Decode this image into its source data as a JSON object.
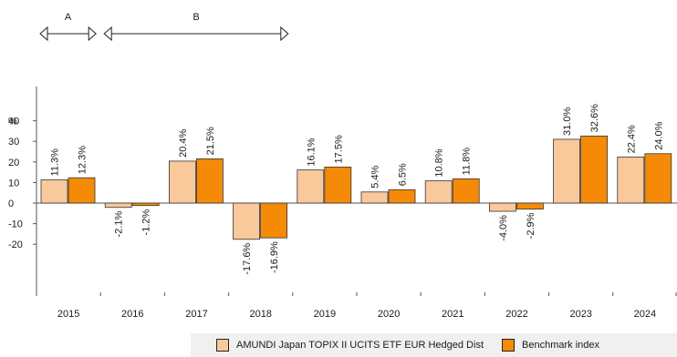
{
  "chart_data": {
    "type": "bar",
    "y_unit_label": "%",
    "categories": [
      "2015",
      "2016",
      "2017",
      "2018",
      "2019",
      "2020",
      "2021",
      "2022",
      "2023",
      "2024"
    ],
    "series": [
      {
        "name": "AMUNDI Japan TOPIX II UCITS ETF EUR Hedged Dist",
        "color": "#f9c99b",
        "values": [
          11.3,
          -2.1,
          20.4,
          -17.6,
          16.1,
          5.4,
          10.8,
          -4.0,
          31.0,
          22.4
        ],
        "labels": [
          "11.3%",
          "-2.1%",
          "20.4%",
          "-17.6%",
          "16.1%",
          "5.4%",
          "10.8%",
          "-4.0%",
          "31.0%",
          "22.4%"
        ]
      },
      {
        "name": "Benchmark index",
        "color": "#f58a07",
        "values": [
          12.3,
          -1.2,
          21.5,
          -16.9,
          17.5,
          6.5,
          11.8,
          -2.9,
          32.6,
          24.0
        ],
        "labels": [
          "12.3%",
          "-1.2%",
          "21.5%",
          "-16.9%",
          "17.5%",
          "6.5%",
          "11.8%",
          "-2.9%",
          "32.6%",
          "24.0%"
        ]
      }
    ],
    "y_ticks": [
      "40",
      "30",
      "20",
      "10",
      "0",
      "-10",
      "-20"
    ],
    "ylim": [
      -43,
      57
    ],
    "grid": false,
    "legend_position": "bottom-right",
    "periods": [
      {
        "label": "A",
        "start": "2015",
        "end": "2015"
      },
      {
        "label": "B",
        "start": "2016",
        "end": "2018"
      }
    ]
  }
}
